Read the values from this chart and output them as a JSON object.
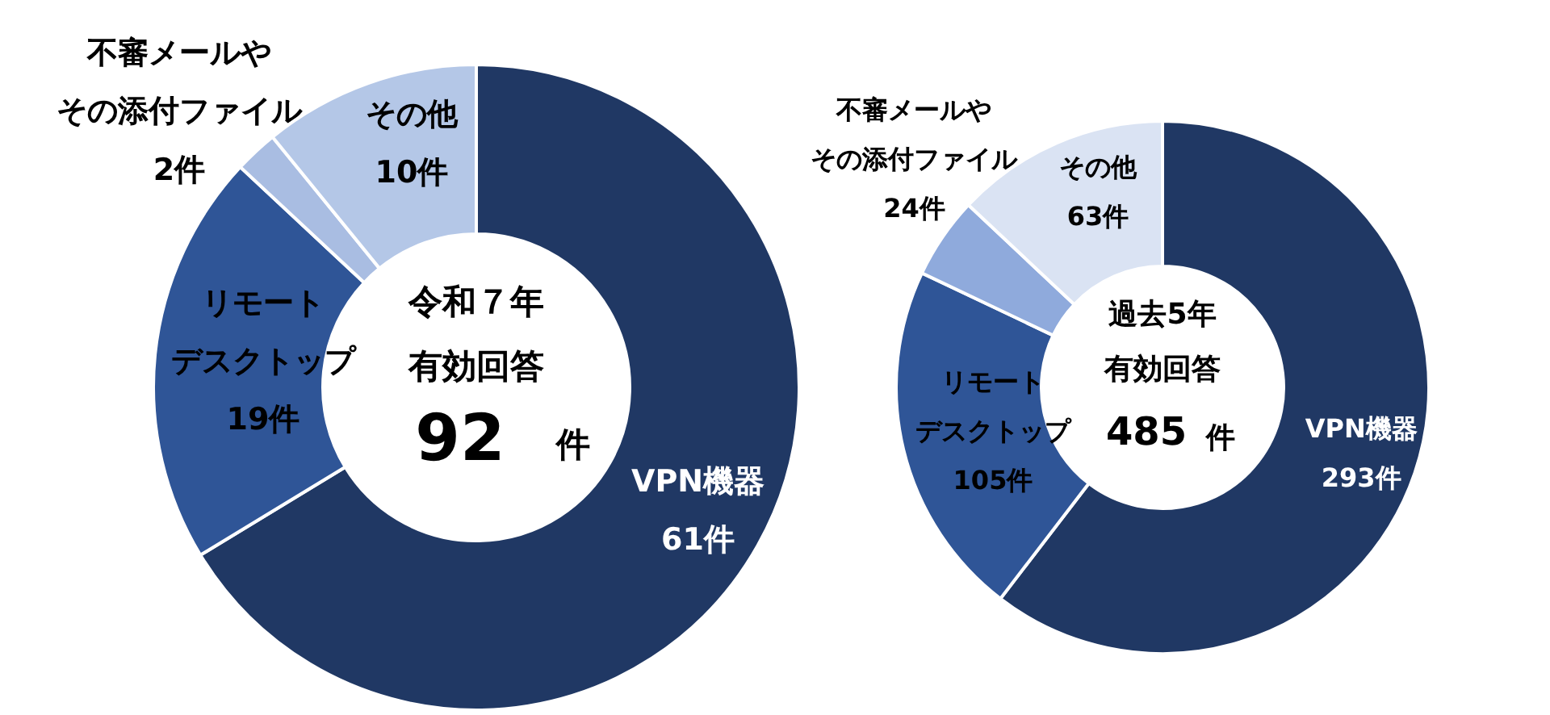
{
  "chart_data": [
    {
      "type": "donut",
      "categories": [
        "VPN機器",
        "リモートデスクトップ",
        "不審メールやその添付ファイル",
        "その他"
      ],
      "values": [
        61,
        19,
        2,
        10
      ],
      "colors": [
        "#203864",
        "#2f5597",
        "#a9bde2",
        "#b4c7e7"
      ],
      "value_labels": [
        "61件",
        "19件",
        "2件",
        "10件"
      ],
      "annotations": [
        "令和７年",
        "有効回答",
        "92",
        "件"
      ]
    },
    {
      "type": "donut",
      "categories": [
        "VPN機器",
        "リモートデスクトップ",
        "不審メールやその添付ファイル",
        "その他"
      ],
      "values": [
        293,
        105,
        24,
        63
      ],
      "colors": [
        "#203864",
        "#2f5597",
        "#8faadc",
        "#dae3f3"
      ],
      "value_labels": [
        "293件",
        "105件",
        "24件",
        "63件"
      ],
      "annotations": [
        "過去5年",
        "有効回答",
        "485",
        "件"
      ]
    }
  ]
}
